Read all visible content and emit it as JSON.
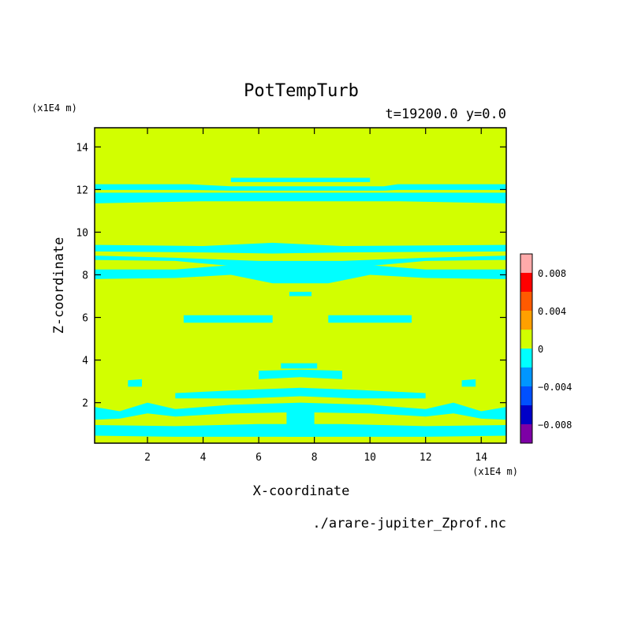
{
  "chart_data": {
    "type": "heatmap",
    "title": "PotTempTurb",
    "subtitle": "t=19200.0 y=0.0",
    "xlabel": "X-coordinate",
    "ylabel": "Z-coordinate",
    "x_unit": "(x1E4 m)",
    "y_unit": "(x1E4 m)",
    "source": "./arare-jupiter_Zprof.nc",
    "xlim": [
      0.1,
      14.9
    ],
    "ylim": [
      0.1,
      14.9
    ],
    "x_ticks": [
      2,
      4,
      6,
      8,
      10,
      12,
      14
    ],
    "y_ticks": [
      2,
      4,
      6,
      8,
      10,
      12,
      14
    ],
    "x_tick_labels": [
      "2",
      "4",
      "6",
      "8",
      "10",
      "12",
      "14"
    ],
    "y_tick_labels": [
      "2",
      "4",
      "6",
      "8",
      "10",
      "12",
      "14"
    ],
    "background_level": [
      0,
      0.002
    ],
    "background_color": "#d2ff00",
    "colorbar": {
      "levels": [
        -0.01,
        -0.008,
        -0.006,
        -0.004,
        -0.002,
        0,
        0.002,
        0.004,
        0.006,
        0.008,
        0.01
      ],
      "colors": [
        "#7d00a5",
        "#0000c8",
        "#0050ff",
        "#0096ff",
        "#00ffff",
        "#d2ff00",
        "#ffa000",
        "#ff5a00",
        "#ff0000",
        "#ffaaaa"
      ],
      "tick_values": [
        -0.008,
        -0.004,
        0,
        0.004,
        0.008
      ],
      "tick_labels": [
        "−0.008",
        "−0.004",
        "0",
        "0.004",
        "0.008"
      ]
    },
    "negative_regions": {
      "level": [
        -0.002,
        0
      ],
      "color": "#00ffff",
      "bands": [
        {
          "x": [
            0.1,
            3.5,
            5.0,
            10.5,
            11.0,
            14.9
          ],
          "top": [
            12.25,
            12.25,
            12.15,
            12.15,
            12.25,
            12.25
          ],
          "bottom": [
            11.98,
            11.98,
            11.95,
            11.95,
            11.98,
            11.98
          ]
        },
        {
          "x": [
            0.1,
            4.0,
            11.0,
            14.9
          ],
          "top": [
            11.85,
            11.85,
            11.85,
            11.85
          ],
          "bottom": [
            11.35,
            11.45,
            11.45,
            11.35
          ]
        },
        {
          "x": [
            5.0,
            10.0
          ],
          "top": [
            12.55,
            12.55
          ],
          "bottom": [
            12.35,
            12.35
          ]
        },
        {
          "x": [
            0.1,
            4.0,
            6.5,
            9.0,
            14.9
          ],
          "top": [
            9.4,
            9.35,
            9.5,
            9.35,
            9.4
          ],
          "bottom": [
            9.1,
            9.05,
            9.0,
            9.05,
            9.1
          ]
        },
        {
          "x": [
            0.1,
            3.0,
            6.0,
            7.5,
            9.0,
            12.0,
            14.9
          ],
          "top": [
            8.9,
            8.8,
            8.65,
            8.65,
            8.65,
            8.8,
            8.9
          ],
          "bottom": [
            8.7,
            8.65,
            8.3,
            8.2,
            8.3,
            8.65,
            8.7
          ]
        },
        {
          "x": [
            0.1,
            3.0,
            5.0,
            6.5,
            8.5,
            10.0,
            12.0,
            14.9
          ],
          "top": [
            8.25,
            8.25,
            8.45,
            8.5,
            8.5,
            8.45,
            8.25,
            8.25
          ],
          "bottom": [
            7.8,
            7.85,
            8.0,
            7.6,
            7.6,
            8.0,
            7.85,
            7.8
          ]
        },
        {
          "x": [
            7.1,
            7.9
          ],
          "top": [
            7.2,
            7.2
          ],
          "bottom": [
            7.0,
            7.0
          ]
        },
        {
          "x": [
            3.3,
            4.5,
            6.5
          ],
          "top": [
            6.1,
            6.1,
            6.1
          ],
          "bottom": [
            5.75,
            5.75,
            5.75
          ]
        },
        {
          "x": [
            8.5,
            10.5,
            11.5
          ],
          "top": [
            6.1,
            6.1,
            6.1
          ],
          "bottom": [
            5.75,
            5.75,
            5.75
          ]
        },
        {
          "x": [
            6.8,
            8.1
          ],
          "top": [
            3.85,
            3.85
          ],
          "bottom": [
            3.6,
            3.6
          ]
        },
        {
          "x": [
            6.0,
            7.5,
            9.0
          ],
          "top": [
            3.5,
            3.55,
            3.5
          ],
          "bottom": [
            3.1,
            3.2,
            3.1
          ]
        },
        {
          "x": [
            1.3,
            1.8
          ],
          "top": [
            3.05,
            3.1
          ],
          "bottom": [
            2.75,
            2.75
          ]
        },
        {
          "x": [
            13.3,
            13.8
          ],
          "top": [
            3.05,
            3.1
          ],
          "bottom": [
            2.75,
            2.75
          ]
        },
        {
          "x": [
            3.0,
            5.5,
            7.5,
            9.5,
            12.0
          ],
          "top": [
            2.45,
            2.6,
            2.7,
            2.6,
            2.45
          ],
          "bottom": [
            2.2,
            2.2,
            2.3,
            2.2,
            2.2
          ]
        },
        {
          "x": [
            0.1,
            1.0,
            2.0,
            3.0,
            5.0,
            7.5,
            10.0,
            12.0,
            13.0,
            14.0,
            14.9
          ],
          "top": [
            1.8,
            1.6,
            2.0,
            1.7,
            1.9,
            2.0,
            1.9,
            1.7,
            2.0,
            1.6,
            1.8
          ],
          "bottom": [
            1.2,
            1.25,
            1.5,
            1.35,
            1.5,
            1.55,
            1.5,
            1.35,
            1.5,
            1.25,
            1.2
          ]
        },
        {
          "x": [
            0.1,
            3.0,
            6.0,
            7.5,
            9.0,
            12.0,
            14.9
          ],
          "top": [
            0.95,
            0.9,
            1.0,
            1.0,
            1.0,
            0.9,
            0.95
          ],
          "bottom": [
            0.45,
            0.4,
            0.4,
            0.4,
            0.4,
            0.4,
            0.45
          ]
        },
        {
          "x": [
            7.0,
            8.0
          ],
          "top": [
            1.6,
            1.6
          ],
          "bottom": [
            0.4,
            0.4
          ]
        }
      ]
    }
  }
}
